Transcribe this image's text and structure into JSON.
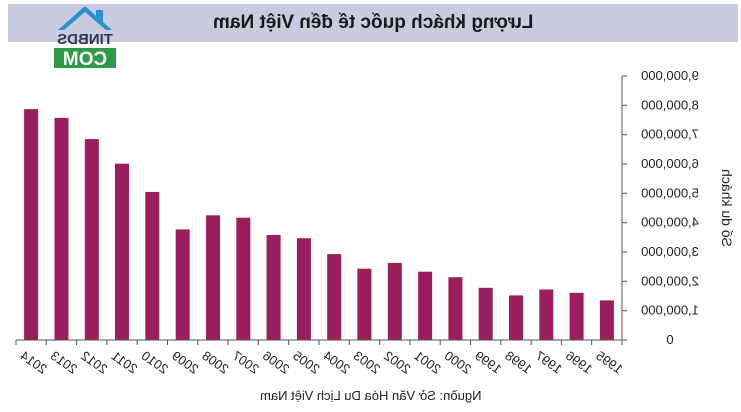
{
  "title": "Lượng khách quốc tế đến Việt Nam",
  "source": "Nguồn: Sở Văn Hóa Du Lịch Việt Nam",
  "logo": {
    "top_text": "TINBDS",
    "bottom_text": "COM",
    "icon": "house-logo-icon"
  },
  "colors": {
    "bar": "#9b1f5e",
    "title_bg": "#c9ccdf",
    "axis": "#555555",
    "logo_blue": "#2b8fd1",
    "logo_green": "#2e9a48"
  },
  "chart_data": {
    "type": "bar",
    "orientation": "mirrored",
    "ylabel": "Số du khách",
    "ylim": [
      0,
      9000000
    ],
    "yticks": [
      "0",
      "1,000,000",
      "2,000,000",
      "3,000,000",
      "4,000,000",
      "5,000,000",
      "6,000,000",
      "7,000,000",
      "8,000,000",
      "9,000,000"
    ],
    "categories": [
      "2014",
      "2013",
      "2012",
      "2011",
      "2010",
      "2009",
      "2008",
      "2007",
      "2006",
      "2005",
      "2004",
      "2003",
      "2002",
      "2001",
      "2000",
      "1999",
      "1998",
      "1997",
      "1996",
      "1995"
    ],
    "values": [
      7870000,
      7570000,
      6850000,
      6010000,
      5050000,
      3770000,
      4250000,
      4170000,
      3580000,
      3470000,
      2930000,
      2430000,
      2630000,
      2330000,
      2140000,
      1780000,
      1520000,
      1720000,
      1610000,
      1350000
    ],
    "grid": false,
    "legend": "none"
  }
}
